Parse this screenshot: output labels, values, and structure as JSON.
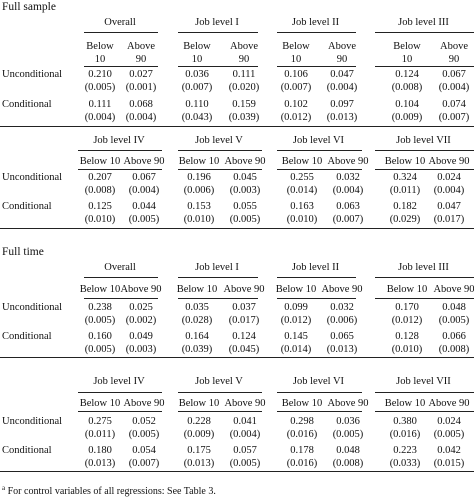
{
  "sections": [
    {
      "title": "Full sample",
      "tables": [
        {
          "groups": [
            "Overall",
            "Job level I",
            "Job level II",
            "Job level III"
          ],
          "sub": [
            "Below\n10",
            "Above\n90"
          ],
          "rows": [
            {
              "label": "Unconditional",
              "values": [
                "0.210",
                "0.027",
                "0.036",
                "0.111",
                "0.106",
                "0.047",
                "0.124",
                "0.067"
              ],
              "se": [
                "(0.005)",
                "(0.001)",
                "(0.007)",
                "(0.020)",
                "(0.007)",
                "(0.004)",
                "(0.008)",
                "(0.004)"
              ]
            },
            {
              "label": "Conditional",
              "values": [
                "0.111",
                "0.068",
                "0.110",
                "0.159",
                "0.102",
                "0.097",
                "0.104",
                "0.074"
              ],
              "se": [
                "(0.004)",
                "(0.004)",
                "(0.043)",
                "(0.039)",
                "(0.012)",
                "(0.013)",
                "(0.009)",
                "(0.007)"
              ]
            }
          ]
        },
        {
          "groups": [
            "Job level IV",
            "Job level V",
            "Job level VI",
            "Job level VII"
          ],
          "sub": [
            "Below 10",
            "Above 90"
          ],
          "rows": [
            {
              "label": "Unconditional",
              "values": [
                "0.207",
                "0.067",
                "0.196",
                "0.045",
                "0.255",
                "0.032",
                "0.324",
                "0.024"
              ],
              "se": [
                "(0.008)",
                "(0.004)",
                "(0.006)",
                "(0.003)",
                "(0.014)",
                "(0.004)",
                "(0.011)",
                "(0.004)"
              ]
            },
            {
              "label": "Conditional",
              "values": [
                "0.125",
                "0.044",
                "0.153",
                "0.055",
                "0.163",
                "0.063",
                "0.182",
                "0.047"
              ],
              "se": [
                "(0.010)",
                "(0.005)",
                "(0.010)",
                "(0.005)",
                "(0.010)",
                "(0.007)",
                "(0.029)",
                "(0.017)"
              ]
            }
          ]
        }
      ]
    },
    {
      "title": "Full time",
      "tables": [
        {
          "groups": [
            "Overall",
            "Job level I",
            "Job level II",
            "Job level III"
          ],
          "sub": [
            "Below 10",
            "Above 90"
          ],
          "rows": [
            {
              "label": "Unconditional",
              "values": [
                "0.238",
                "0.025",
                "0.035",
                "0.037",
                "0.099",
                "0.032",
                "0.170",
                "0.048"
              ],
              "se": [
                "(0.005)",
                "(0.002)",
                "(0.028)",
                "(0.017)",
                "(0.012)",
                "(0.006)",
                "(0.012)",
                "(0.005)"
              ]
            },
            {
              "label": "Conditional",
              "values": [
                "0.160",
                "0.049",
                "0.164",
                "0.124",
                "0.145",
                "0.065",
                "0.128",
                "0.066"
              ],
              "se": [
                "(0.005)",
                "(0.003)",
                "(0.039)",
                "(0.045)",
                "(0.014)",
                "(0.013)",
                "(0.010)",
                "(0.008)"
              ]
            }
          ]
        },
        {
          "groups": [
            "Job level IV",
            "Job level V",
            "Job level VI",
            "Job level VII"
          ],
          "sub": [
            "Below 10",
            "Above 90"
          ],
          "rows": [
            {
              "label": "Unconditional",
              "values": [
                "0.275",
                "0.052",
                "0.228",
                "0.041",
                "0.298",
                "0.036",
                "0.380",
                "0.024"
              ],
              "se": [
                "(0.011)",
                "(0.005)",
                "(0.009)",
                "(0.004)",
                "(0.016)",
                "(0.005)",
                "(0.016)",
                "(0.005)"
              ]
            },
            {
              "label": "Conditional",
              "values": [
                "0.180",
                "0.054",
                "0.175",
                "0.057",
                "0.178",
                "0.048",
                "0.223",
                "0.042"
              ],
              "se": [
                "(0.013)",
                "(0.007)",
                "(0.013)",
                "(0.005)",
                "(0.016)",
                "(0.008)",
                "(0.033)",
                "(0.015)"
              ]
            }
          ]
        }
      ]
    }
  ],
  "footnote_mark": "a",
  "footnote": "For control variables of all regressions: See Table 3."
}
